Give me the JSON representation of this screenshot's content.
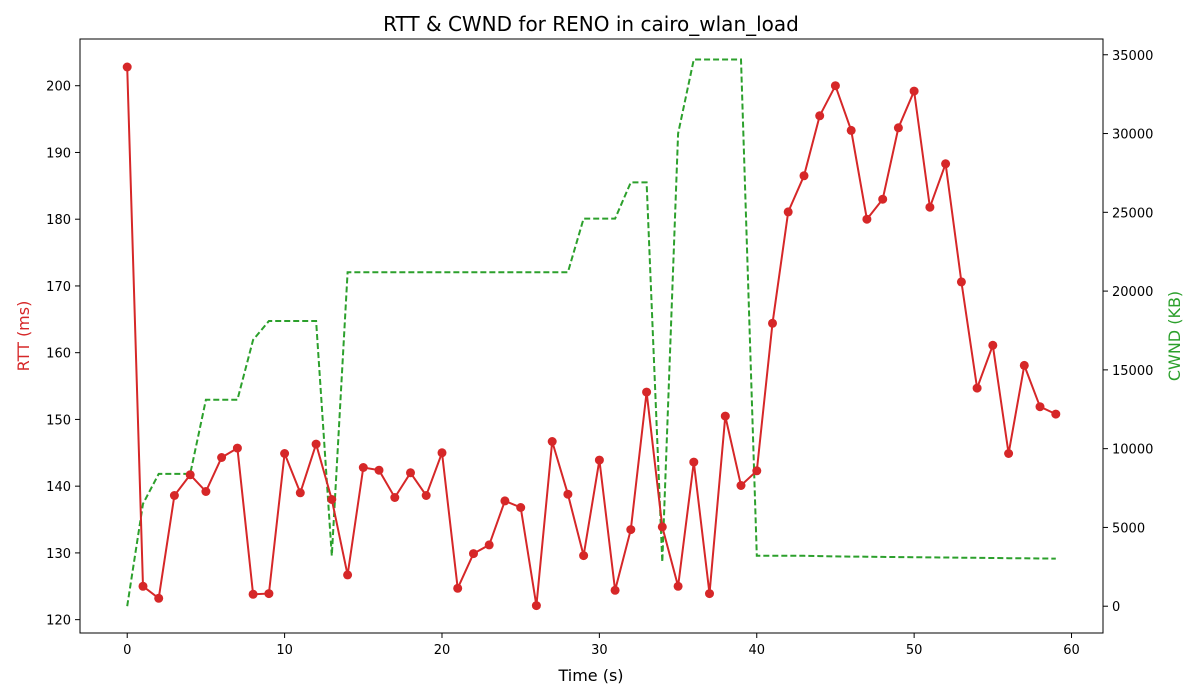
{
  "chart_data": {
    "type": "line",
    "title": "RTT & CWND for RENO in cairo_wlan_load",
    "xlabel": "Time (s)",
    "ylabel_left": "RTT (ms)",
    "ylabel_right": "CWND (KB)",
    "xlim": [
      -3,
      62
    ],
    "ylim_left": [
      118,
      207
    ],
    "ylim_right": [
      -1700,
      36000
    ],
    "x_ticks": [
      0,
      10,
      20,
      30,
      40,
      50,
      60
    ],
    "y_left_ticks": [
      120,
      130,
      140,
      150,
      160,
      170,
      180,
      190,
      200
    ],
    "y_right_ticks": [
      0,
      5000,
      10000,
      15000,
      20000,
      25000,
      30000,
      35000
    ],
    "grid": false,
    "colors": {
      "rtt": "#d62728",
      "cwnd": "#2ca02c",
      "axis": "#000000"
    },
    "series": [
      {
        "axis": "left",
        "style": "solid-markers",
        "x": [
          0,
          1,
          2,
          3,
          4,
          5,
          6,
          7,
          8,
          9,
          10,
          11,
          12,
          13,
          14,
          15,
          16,
          17,
          18,
          19,
          20,
          21,
          22,
          23,
          24,
          25,
          26,
          27,
          28,
          29,
          30,
          31,
          32,
          33,
          34,
          35,
          36,
          37,
          38,
          39,
          40,
          41,
          42,
          43,
          44,
          45,
          46,
          47,
          48,
          49,
          50,
          51,
          52,
          53,
          54,
          55,
          56,
          57,
          58,
          59
        ],
        "y": [
          202.8,
          125.0,
          123.2,
          138.6,
          141.7,
          139.2,
          144.3,
          145.7,
          123.8,
          123.9,
          144.9,
          139.0,
          146.3,
          138.0,
          126.7,
          142.8,
          142.4,
          138.3,
          142.0,
          138.6,
          145.0,
          124.7,
          129.9,
          131.2,
          137.8,
          136.8,
          122.1,
          146.7,
          138.8,
          129.6,
          143.9,
          124.4,
          133.5,
          154.1,
          133.9,
          125.0,
          143.6,
          123.9,
          150.5,
          140.1,
          142.3,
          164.4,
          181.1,
          186.5,
          195.5,
          200.0,
          193.3,
          180.0,
          183.0,
          193.7,
          199.2,
          181.8,
          188.3,
          170.6,
          154.7,
          161.1,
          144.9,
          158.1,
          151.9,
          150.8
        ]
      },
      {
        "axis": "right",
        "style": "dashed",
        "x": [
          0,
          1,
          2,
          3,
          4,
          5,
          6,
          7,
          8,
          9,
          10,
          11,
          12,
          13,
          14,
          15,
          16,
          17,
          18,
          19,
          20,
          21,
          22,
          23,
          24,
          25,
          26,
          27,
          28,
          29,
          30,
          31,
          32,
          33,
          34,
          35,
          36,
          37,
          38,
          39,
          40,
          41,
          42,
          43,
          44,
          45,
          46,
          47,
          48,
          49,
          50,
          51,
          52,
          53,
          54,
          55,
          56,
          57,
          58,
          59
        ],
        "y": [
          0,
          6500,
          8400,
          8400,
          8400,
          13100,
          13100,
          13100,
          16900,
          18100,
          18100,
          18100,
          18100,
          3200,
          21200,
          21200,
          21200,
          21200,
          21200,
          21200,
          21200,
          21200,
          21200,
          21200,
          21200,
          21200,
          21200,
          21200,
          21200,
          24600,
          24600,
          24600,
          26900,
          26900,
          2800,
          30000,
          34700,
          34700,
          34700,
          34700,
          3200,
          3200,
          3200,
          3200,
          3180,
          3160,
          3150,
          3140,
          3130,
          3120,
          3110,
          3100,
          3090,
          3080,
          3070,
          3060,
          3050,
          3040,
          3030,
          3020
        ]
      }
    ]
  }
}
